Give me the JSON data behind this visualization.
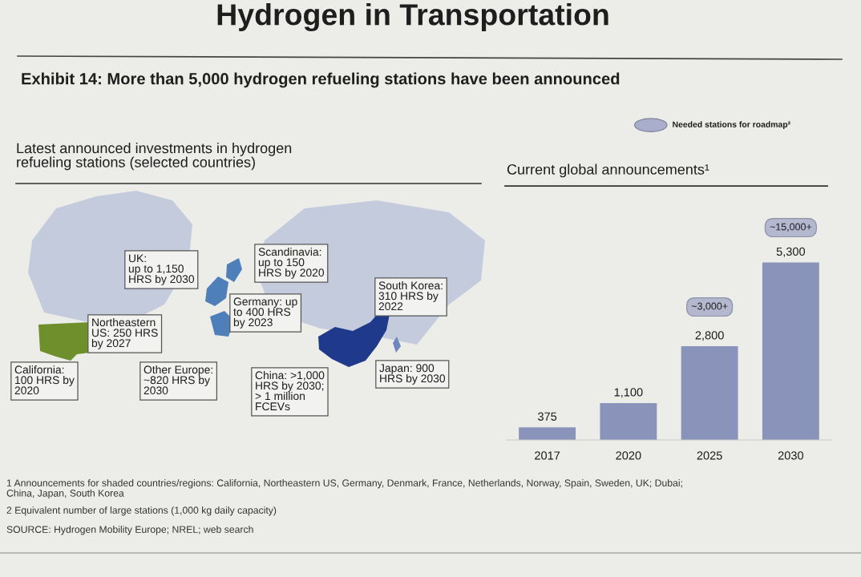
{
  "chart_data": [
    {
      "type": "other",
      "title": "Hydrogen in Transportation",
      "subtitle": "Exhibit 14: More than 5,000 hydrogen refueling stations have been announced",
      "annotations": [
        "1 Announcements for shaded countries/regions: California, Northeastern US, Germany, Denmark, France, Netherlands, Norway, Spain, Sweden, UK; Dubai;\nChina, Japan, South Korea",
        "2 Equivalent number of large stations (1,000 kg daily capacity)",
        "SOURCE: Hydrogen Mobility Europe; NREL; web search"
      ]
    },
    {
      "type": "other",
      "title": "Latest announced investments in hydrogen\nrefueling stations (selected countries)",
      "annotations": [
        "Scandinavia:\nup to 150\nHRS by 2020",
        "UK:\nup to 1,150\nHRS by 2030",
        "South Korea:\n310 HRS by\n2022",
        "Germany: up\nto 400 HRS\nby 2023",
        "Northeastern\nUS: 250 HRS\nby 2027",
        "California:\n100 HRS by\n2020",
        "Other Europe:\n~820 HRS by\n2030",
        "Japan: 900\nHRS by 2030",
        "China: >1,000\nHRS by 2030;\n> 1 million\nFCEVs"
      ]
    },
    {
      "type": "bar",
      "title": "Current global announcements¹",
      "categories": [
        "2017",
        "2020",
        "2025",
        "2030"
      ],
      "values": [
        375,
        1100,
        2800,
        5300
      ],
      "value_labels": [
        "375",
        "1,100",
        "2,800",
        "5,300"
      ],
      "color": "#8a93b9",
      "tick_labels": "x",
      "annotations": [
        "~3,000+",
        "~15,000+",
        "Needed stations for roadmap²"
      ]
    }
  ]
}
